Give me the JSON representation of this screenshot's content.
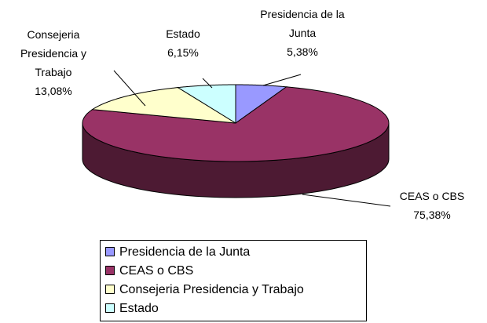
{
  "chart_data": {
    "type": "pie",
    "categories": [
      "Presidencia de la Junta",
      "CEAS o CBS",
      "Consejeria Presidencia y Trabajo",
      "Estado"
    ],
    "values": [
      5.38,
      75.38,
      13.08,
      6.15
    ],
    "value_labels": [
      "5,38%",
      "75,38%",
      "13,08%",
      "6,15%"
    ],
    "colors": [
      "#9999ff",
      "#993366",
      "#ffffcc",
      "#ccffff"
    ],
    "legend": "bottom"
  }
}
